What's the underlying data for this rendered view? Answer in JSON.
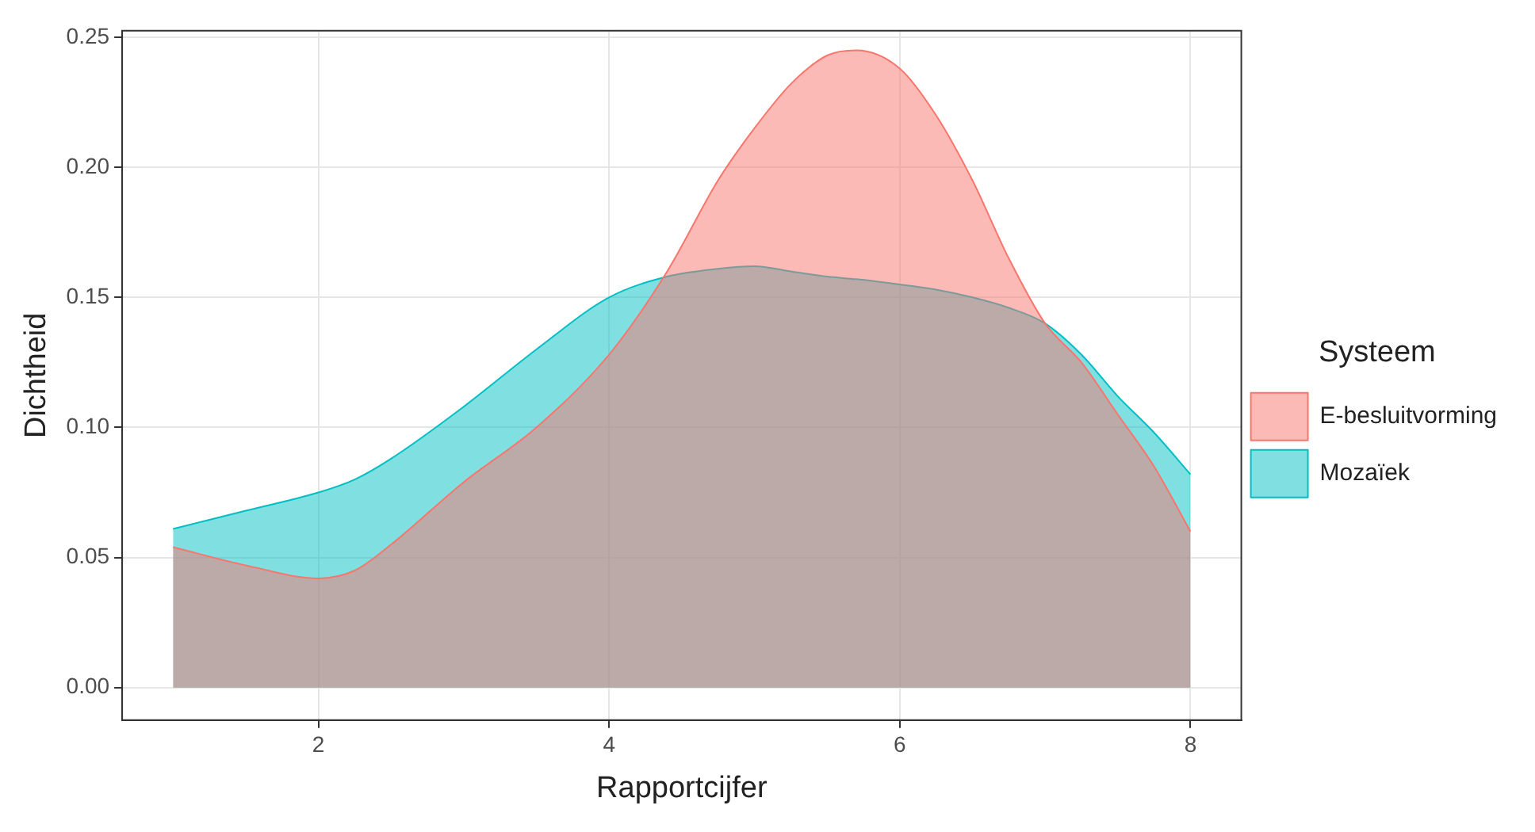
{
  "chart_data": {
    "type": "area",
    "xlabel": "Rapportcijfer",
    "ylabel": "Dichtheid",
    "legend_title": "Systeem",
    "legend": "right",
    "grid": true,
    "x": [
      1,
      1.5,
      2,
      2.25,
      2.5,
      3,
      3.5,
      4,
      4.4,
      4.75,
      5,
      5.25,
      5.5,
      5.7,
      6,
      6.25,
      6.5,
      6.75,
      7,
      7.25,
      7.5,
      7.75,
      8
    ],
    "series": [
      {
        "name": "E-besluitvorming",
        "color": "#f8766d",
        "values": [
          0.054,
          0.047,
          0.042,
          0.045,
          0.055,
          0.079,
          0.1,
          0.128,
          0.16,
          0.195,
          0.215,
          0.232,
          0.243,
          0.245,
          0.238,
          0.22,
          0.195,
          0.165,
          0.14,
          0.125,
          0.105,
          0.085,
          0.06
        ]
      },
      {
        "name": "Mozaïek",
        "color": "#00bfc4",
        "values": [
          0.061,
          0.068,
          0.075,
          0.08,
          0.088,
          0.108,
          0.13,
          0.15,
          0.158,
          0.161,
          0.162,
          0.16,
          0.158,
          0.157,
          0.155,
          0.153,
          0.15,
          0.146,
          0.14,
          0.128,
          0.112,
          0.098,
          0.082
        ]
      }
    ],
    "xlim": [
      0.65,
      8.35
    ],
    "xticks": [
      2,
      4,
      6,
      8
    ],
    "ylim": [
      -0.0125,
      0.2525
    ],
    "yticks": [
      {
        "value": 0,
        "label": "0.00"
      },
      {
        "value": 0.05,
        "label": "0.05"
      },
      {
        "value": 0.1,
        "label": "0.10"
      },
      {
        "value": 0.15,
        "label": "0.15"
      },
      {
        "value": 0.2,
        "label": "0.20"
      },
      {
        "value": 0.25,
        "label": "0.25"
      }
    ]
  }
}
